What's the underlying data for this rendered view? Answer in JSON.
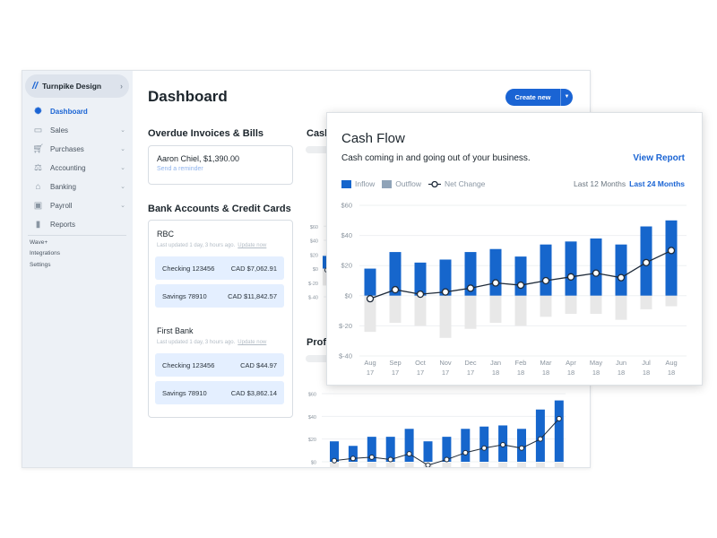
{
  "sidebar": {
    "brand": "Turnpike Design",
    "items": [
      {
        "label": "Dashboard",
        "icon": "dashboard-icon",
        "active": true
      },
      {
        "label": "Sales",
        "icon": "sales-icon"
      },
      {
        "label": "Purchases",
        "icon": "cart-icon"
      },
      {
        "label": "Accounting",
        "icon": "scales-icon"
      },
      {
        "label": "Banking",
        "icon": "bank-icon"
      },
      {
        "label": "Payroll",
        "icon": "payroll-icon"
      },
      {
        "label": "Reports",
        "icon": "reports-icon"
      }
    ],
    "secondary": [
      "Wave+",
      "Integrations",
      "Settings"
    ]
  },
  "header": {
    "title": "Dashboard",
    "create_label": "Create new"
  },
  "overdue": {
    "heading": "Overdue Invoices & Bills",
    "item": "Aaron Chiel, $1,390.00",
    "action": "Send a reminder"
  },
  "banks": {
    "heading": "Bank Accounts & Credit Cards",
    "list": [
      {
        "name": "RBC",
        "updated": "Last updated 1 day, 3 hours ago.",
        "update_link": "Update now",
        "accounts": [
          {
            "name": "Checking 123456",
            "balance": "CAD $7,062.91"
          },
          {
            "name": "Savings 78910",
            "balance": "CAD $11,842.57"
          }
        ]
      },
      {
        "name": "First Bank",
        "updated": "Last updated 1 day, 3 hours ago.",
        "update_link": "Update now",
        "accounts": [
          {
            "name": "Checking 123456",
            "balance": "CAD $44.97"
          },
          {
            "name": "Savings 78910",
            "balance": "CAD $3,862.14"
          }
        ]
      }
    ]
  },
  "background": {
    "cash_title": "Cash Flow",
    "profit_title": "Profit"
  },
  "popup": {
    "title": "Cash Flow",
    "subtitle": "Cash coming in and going out of your business.",
    "view_report": "View Report",
    "legend": [
      "Inflow",
      "Outflow",
      "Net Change"
    ],
    "range_options": [
      "Last 12 Months",
      "Last 24 Months"
    ],
    "range_selected": "Last 24 Months"
  },
  "colors": {
    "accent": "#1a64d4",
    "inflow": "#1666cc",
    "outflow": "#e8e8e8",
    "outflow_legend": "#8fa3b8",
    "net": "#1f2b3a"
  },
  "chart_data": [
    {
      "type": "bar",
      "title": "Cash Flow",
      "categories": [
        "Aug 17",
        "Sep 17",
        "Oct 17",
        "Nov 17",
        "Dec 17",
        "Jan 18",
        "Feb 18",
        "Mar 18",
        "Apr 18",
        "May 18",
        "Jun 18",
        "Jul 18",
        "Aug 18"
      ],
      "yticks": [
        "$60",
        "$40",
        "$20",
        "$0",
        "$-20",
        "$-40"
      ],
      "ylim": [
        -40,
        60
      ],
      "grid": true,
      "legend_position": "top-left",
      "series": [
        {
          "name": "Inflow",
          "type": "bar",
          "values": [
            18,
            29,
            22,
            24,
            29,
            31,
            26,
            34,
            36,
            38,
            34,
            46,
            50
          ]
        },
        {
          "name": "Outflow",
          "type": "bar",
          "values": [
            -24,
            -18,
            -20,
            -28,
            -22,
            -18,
            -20,
            -14,
            -12,
            -12,
            -16,
            -9,
            -7
          ]
        },
        {
          "name": "Net Change",
          "type": "line",
          "values": [
            -2,
            4,
            1,
            2.5,
            5,
            8.5,
            7,
            10,
            12.5,
            15,
            12,
            22,
            30
          ]
        }
      ]
    },
    {
      "type": "bar",
      "title": "Profit",
      "yticks": [
        "$60",
        "$40",
        "$20",
        "$0"
      ],
      "ylim": [
        0,
        60
      ],
      "grid": true,
      "series": [
        {
          "type": "bar",
          "values": [
            18,
            14,
            22,
            22,
            29,
            18,
            22,
            29,
            31,
            32,
            29,
            46,
            54
          ]
        },
        {
          "type": "line",
          "values": [
            1,
            3,
            4,
            2,
            7,
            -3,
            2,
            8,
            12,
            15,
            12,
            20,
            38
          ]
        }
      ]
    }
  ]
}
